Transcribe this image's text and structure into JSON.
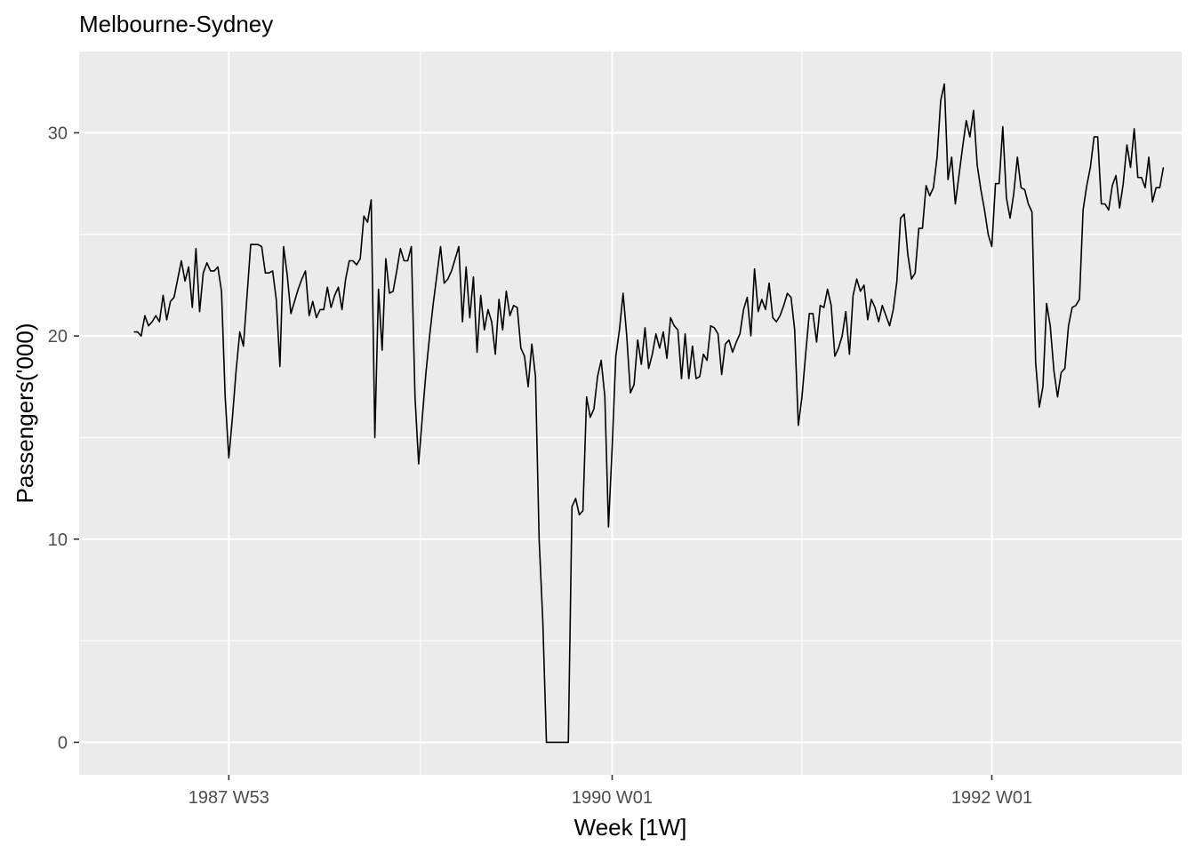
{
  "chart_data": {
    "type": "line",
    "title": "Melbourne-Sydney",
    "xlabel": "Week [1W]",
    "ylabel": "Passengers('000)",
    "x_ticks": [
      {
        "week_index": 0,
        "label": "1987 W53"
      },
      {
        "week_index": 105,
        "label": "1990 W01"
      },
      {
        "week_index": 209,
        "label": "1992 W01"
      }
    ],
    "y_ticks": [
      0,
      10,
      20,
      30
    ],
    "ylim": [
      -1.6,
      34.0
    ],
    "xlim_week_index": [
      -41,
      261
    ],
    "grid": true,
    "panel_color": "#EBEBEB",
    "grid_color": "#FFFFFF",
    "line_color": "#000000",
    "series": [
      {
        "start_week": "1987 W27",
        "values": [
          20.2,
          20.2,
          20.0,
          21.0,
          20.5,
          20.7,
          21.0,
          20.7,
          22.0,
          20.8,
          21.7,
          21.9,
          22.8,
          23.7,
          22.7,
          23.4,
          21.4,
          24.3,
          21.2,
          23.1,
          23.6,
          23.2,
          23.2,
          23.4,
          22.2,
          17.0,
          14.0,
          16.0,
          18.3,
          20.2,
          19.5,
          22.0,
          24.5,
          24.5,
          24.5,
          24.4,
          23.1,
          23.1,
          23.2,
          21.8,
          18.5,
          24.4,
          23.0,
          21.1,
          21.7,
          22.3,
          22.8,
          23.2,
          21.0,
          21.7,
          20.9,
          21.3,
          21.3,
          22.4,
          21.4,
          22.0,
          22.4,
          21.3,
          22.8,
          23.7,
          23.7,
          23.5,
          23.8,
          25.9,
          25.6,
          26.7,
          15.0,
          22.3,
          19.3,
          23.8,
          22.1,
          22.2,
          23.2,
          24.3,
          23.7,
          23.7,
          24.4,
          17.0,
          13.7,
          16.0,
          18.2,
          20.0,
          21.6,
          23.0,
          24.4,
          22.6,
          22.8,
          23.2,
          23.8,
          24.4,
          20.7,
          23.4,
          20.9,
          22.9,
          19.2,
          22.0,
          20.3,
          21.3,
          20.7,
          19.1,
          21.8,
          20.3,
          22.2,
          21.0,
          21.5,
          21.4,
          19.4,
          19.0,
          17.5,
          19.6,
          18.0,
          10.0,
          6.0,
          0.0,
          0.0,
          0.0,
          0.0,
          0.0,
          0.0,
          0.0,
          11.6,
          12.0,
          11.2,
          11.4,
          17.0,
          16.0,
          16.4,
          18.0,
          18.8,
          17.0,
          10.6,
          14.5,
          19.0,
          20.3,
          22.1,
          20.0,
          17.2,
          17.6,
          19.8,
          18.6,
          20.4,
          18.4,
          19.1,
          20.1,
          19.4,
          20.2,
          18.9,
          20.9,
          20.5,
          20.3,
          17.9,
          20.1,
          17.9,
          19.5,
          17.9,
          18.0,
          19.1,
          18.8,
          20.5,
          20.4,
          20.1,
          18.1,
          19.6,
          19.8,
          19.2,
          19.7,
          20.1,
          21.3,
          21.9,
          20.0,
          23.3,
          21.2,
          21.8,
          21.3,
          22.6,
          20.9,
          20.7,
          21.0,
          21.5,
          22.1,
          21.9,
          20.3,
          15.6,
          17.0,
          19.1,
          21.1,
          21.1,
          19.7,
          21.5,
          21.4,
          22.3,
          21.5,
          19.0,
          19.4,
          20.0,
          21.2,
          19.1,
          22.0,
          22.8,
          22.2,
          22.5,
          20.8,
          21.8,
          21.4,
          20.7,
          21.5,
          21.0,
          20.5,
          21.3,
          22.7,
          25.8,
          26.0,
          24.0,
          22.8,
          23.1,
          25.3,
          25.3,
          27.4,
          26.9,
          27.3,
          28.8,
          31.6,
          32.4,
          27.7,
          28.8,
          26.5,
          27.9,
          29.3,
          30.6,
          29.8,
          31.1,
          28.4,
          27.2,
          26.2,
          25.0,
          24.4,
          27.5,
          27.5,
          30.3,
          26.8,
          25.8,
          27.0,
          28.8,
          27.3,
          27.2,
          26.5,
          26.1,
          18.7,
          16.5,
          17.5,
          21.6,
          20.5,
          18.3,
          17.0,
          18.2,
          18.4,
          20.5,
          21.4,
          21.5,
          21.8,
          26.2,
          27.4,
          28.3,
          29.8,
          29.8,
          26.5,
          26.5,
          26.2,
          27.4,
          27.9,
          26.3,
          27.5,
          29.4,
          28.3,
          30.2,
          27.8,
          27.8,
          27.3,
          28.8,
          26.6,
          27.3,
          27.3,
          28.3
        ]
      }
    ]
  }
}
